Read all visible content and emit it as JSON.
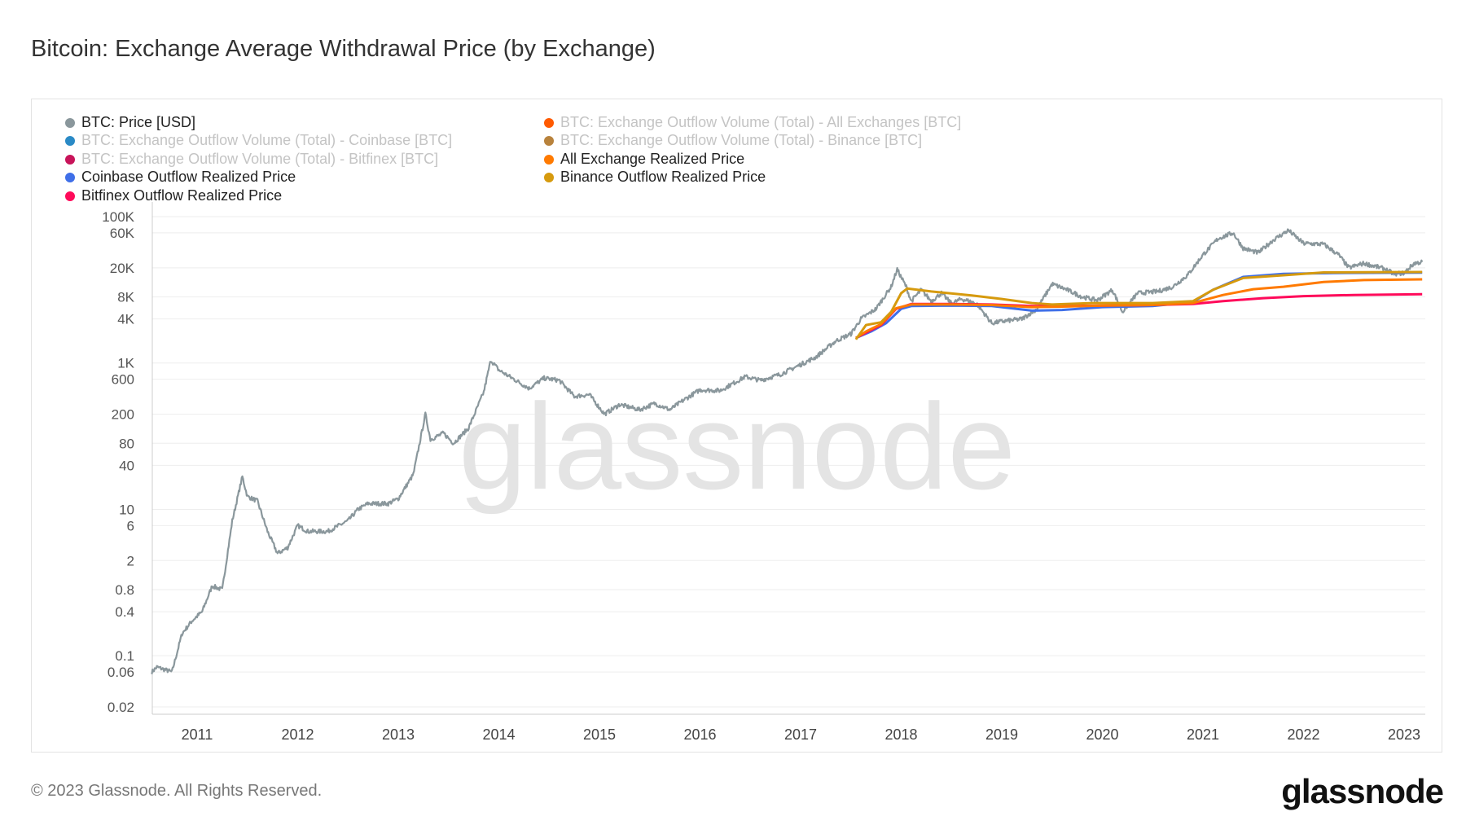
{
  "title": "Bitcoin: Exchange Average Withdrawal Price (by Exchange)",
  "footer": "© 2023 Glassnode. All Rights Reserved.",
  "logo": "glassnode",
  "watermark": "glassnode",
  "legend": [
    {
      "label": "BTC: Price [USD]",
      "color": "#8a979c",
      "active": true
    },
    {
      "label": "BTC: Exchange Outflow Volume (Total) - Coinbase [BTC]",
      "color": "#2a8ac6",
      "active": false
    },
    {
      "label": "BTC: Exchange Outflow Volume (Total) - Bitfinex [BTC]",
      "color": "#c8145a",
      "active": false
    },
    {
      "label": "Coinbase Outflow Realized Price",
      "color": "#3f6fe8",
      "active": true
    },
    {
      "label": "Bitfinex Outflow Realized Price",
      "color": "#ff0a5a",
      "active": true
    },
    {
      "label": "BTC: Exchange Outflow Volume (Total) - All Exchanges [BTC]",
      "color": "#ff5a00",
      "active": false
    },
    {
      "label": "BTC: Exchange Outflow Volume (Total) - Binance [BTC]",
      "color": "#b8823c",
      "active": false
    },
    {
      "label": "All Exchange Realized Price",
      "color": "#ff7a00",
      "active": true
    },
    {
      "label": "Binance Outflow Realized Price",
      "color": "#d69a0e",
      "active": true
    }
  ],
  "chart_data": {
    "type": "line",
    "title": "Bitcoin: Exchange Average Withdrawal Price (by Exchange)",
    "y_scale": "log",
    "ylim": [
      0.015,
      200000
    ],
    "xlim": [
      2010.55,
      2023.2
    ],
    "grid": true,
    "legend_placement": "top-left",
    "y_ticks": [
      {
        "v": 100000,
        "label": "100K"
      },
      {
        "v": 60000,
        "label": "60K"
      },
      {
        "v": 20000,
        "label": "20K"
      },
      {
        "v": 8000,
        "label": "8K"
      },
      {
        "v": 4000,
        "label": "4K"
      },
      {
        "v": 1000,
        "label": "1K"
      },
      {
        "v": 600,
        "label": "600"
      },
      {
        "v": 200,
        "label": "200"
      },
      {
        "v": 80,
        "label": "80"
      },
      {
        "v": 40,
        "label": "40"
      },
      {
        "v": 10,
        "label": "10"
      },
      {
        "v": 6,
        "label": "6"
      },
      {
        "v": 2,
        "label": "2"
      },
      {
        "v": 0.8,
        "label": "0.8"
      },
      {
        "v": 0.4,
        "label": "0.4"
      },
      {
        "v": 0.1,
        "label": "0.1"
      },
      {
        "v": 0.06,
        "label": "0.06"
      },
      {
        "v": 0.02,
        "label": "0.02"
      }
    ],
    "x_ticks": [
      "2011",
      "2012",
      "2013",
      "2014",
      "2015",
      "2016",
      "2017",
      "2018",
      "2019",
      "2020",
      "2021",
      "2022",
      "2023"
    ],
    "series": [
      {
        "name": "BTC: Price [USD]",
        "color": "#8a979c",
        "points": [
          [
            2010.55,
            0.06
          ],
          [
            2010.6,
            0.07
          ],
          [
            2010.75,
            0.06
          ],
          [
            2010.85,
            0.2
          ],
          [
            2010.95,
            0.3
          ],
          [
            2011.05,
            0.4
          ],
          [
            2011.15,
            0.9
          ],
          [
            2011.25,
            0.8
          ],
          [
            2011.35,
            7
          ],
          [
            2011.45,
            28
          ],
          [
            2011.5,
            15
          ],
          [
            2011.6,
            13
          ],
          [
            2011.7,
            5
          ],
          [
            2011.8,
            2.5
          ],
          [
            2011.9,
            3
          ],
          [
            2012.0,
            6
          ],
          [
            2012.1,
            5
          ],
          [
            2012.3,
            5
          ],
          [
            2012.5,
            7
          ],
          [
            2012.6,
            10
          ],
          [
            2012.7,
            12
          ],
          [
            2012.9,
            12
          ],
          [
            2013.0,
            14
          ],
          [
            2013.15,
            30
          ],
          [
            2013.27,
            200
          ],
          [
            2013.32,
            90
          ],
          [
            2013.45,
            110
          ],
          [
            2013.55,
            80
          ],
          [
            2013.7,
            130
          ],
          [
            2013.85,
            400
          ],
          [
            2013.92,
            1100
          ],
          [
            2014.0,
            800
          ],
          [
            2014.15,
            600
          ],
          [
            2014.3,
            450
          ],
          [
            2014.45,
            620
          ],
          [
            2014.6,
            580
          ],
          [
            2014.75,
            350
          ],
          [
            2014.9,
            370
          ],
          [
            2015.05,
            200
          ],
          [
            2015.2,
            270
          ],
          [
            2015.4,
            230
          ],
          [
            2015.55,
            280
          ],
          [
            2015.7,
            230
          ],
          [
            2015.85,
            320
          ],
          [
            2016.0,
            430
          ],
          [
            2016.2,
            420
          ],
          [
            2016.45,
            650
          ],
          [
            2016.6,
            580
          ],
          [
            2016.8,
            700
          ],
          [
            2017.0,
            950
          ],
          [
            2017.15,
            1200
          ],
          [
            2017.35,
            2000
          ],
          [
            2017.5,
            2500
          ],
          [
            2017.6,
            4000
          ],
          [
            2017.75,
            5500
          ],
          [
            2017.9,
            11000
          ],
          [
            2017.96,
            19000
          ],
          [
            2018.05,
            11000
          ],
          [
            2018.1,
            7000
          ],
          [
            2018.2,
            10000
          ],
          [
            2018.3,
            7000
          ],
          [
            2018.4,
            9000
          ],
          [
            2018.5,
            6500
          ],
          [
            2018.6,
            7500
          ],
          [
            2018.75,
            6500
          ],
          [
            2018.9,
            3500
          ],
          [
            2019.0,
            3700
          ],
          [
            2019.2,
            4000
          ],
          [
            2019.35,
            5500
          ],
          [
            2019.5,
            12000
          ],
          [
            2019.65,
            10000
          ],
          [
            2019.8,
            8000
          ],
          [
            2019.95,
            7200
          ],
          [
            2020.1,
            10000
          ],
          [
            2020.2,
            5000
          ],
          [
            2020.35,
            9000
          ],
          [
            2020.55,
            9500
          ],
          [
            2020.7,
            11000
          ],
          [
            2020.85,
            16000
          ],
          [
            2021.0,
            30000
          ],
          [
            2021.15,
            50000
          ],
          [
            2021.3,
            60000
          ],
          [
            2021.4,
            37000
          ],
          [
            2021.55,
            32000
          ],
          [
            2021.7,
            48000
          ],
          [
            2021.85,
            65000
          ],
          [
            2022.0,
            43000
          ],
          [
            2022.2,
            42000
          ],
          [
            2022.35,
            30000
          ],
          [
            2022.45,
            20000
          ],
          [
            2022.6,
            23000
          ],
          [
            2022.8,
            19500
          ],
          [
            2022.9,
            16500
          ],
          [
            2023.0,
            17000
          ],
          [
            2023.1,
            23000
          ],
          [
            2023.18,
            24000
          ]
        ]
      },
      {
        "name": "Coinbase Outflow Realized Price",
        "color": "#3f6fe8",
        "points": [
          [
            2017.55,
            2200
          ],
          [
            2017.7,
            2700
          ],
          [
            2017.85,
            3500
          ],
          [
            2018.0,
            5500
          ],
          [
            2018.1,
            6000
          ],
          [
            2018.5,
            6100
          ],
          [
            2018.9,
            6000
          ],
          [
            2019.3,
            5200
          ],
          [
            2019.6,
            5300
          ],
          [
            2020.0,
            5800
          ],
          [
            2020.5,
            6000
          ],
          [
            2020.9,
            6800
          ],
          [
            2021.1,
            10000
          ],
          [
            2021.4,
            15000
          ],
          [
            2021.8,
            16500
          ],
          [
            2022.3,
            17000
          ],
          [
            2023.18,
            17200
          ]
        ]
      },
      {
        "name": "Bitfinex Outflow Realized Price",
        "color": "#ff0a5a",
        "points": [
          [
            2017.55,
            2200
          ],
          [
            2017.65,
            2600
          ],
          [
            2017.8,
            3300
          ],
          [
            2017.95,
            5500
          ],
          [
            2018.1,
            6400
          ],
          [
            2018.5,
            6400
          ],
          [
            2018.9,
            6300
          ],
          [
            2019.3,
            6000
          ],
          [
            2019.6,
            6000
          ],
          [
            2020.0,
            6100
          ],
          [
            2020.5,
            6200
          ],
          [
            2020.9,
            6400
          ],
          [
            2021.2,
            7000
          ],
          [
            2021.6,
            7700
          ],
          [
            2022.0,
            8200
          ],
          [
            2022.5,
            8500
          ],
          [
            2023.18,
            8700
          ]
        ]
      },
      {
        "name": "All Exchange Realized Price",
        "color": "#ff7a00",
        "points": [
          [
            2017.55,
            2200
          ],
          [
            2017.65,
            2700
          ],
          [
            2017.8,
            3400
          ],
          [
            2017.95,
            5600
          ],
          [
            2018.1,
            6300
          ],
          [
            2018.5,
            6300
          ],
          [
            2018.9,
            6200
          ],
          [
            2019.3,
            5800
          ],
          [
            2019.6,
            5900
          ],
          [
            2020.0,
            6100
          ],
          [
            2020.5,
            6200
          ],
          [
            2020.9,
            6600
          ],
          [
            2021.2,
            8500
          ],
          [
            2021.5,
            10200
          ],
          [
            2021.8,
            11000
          ],
          [
            2022.2,
            12800
          ],
          [
            2022.6,
            13600
          ],
          [
            2023.18,
            13900
          ]
        ]
      },
      {
        "name": "Binance Outflow Realized Price",
        "color": "#d69a0e",
        "points": [
          [
            2017.55,
            2100
          ],
          [
            2017.65,
            3300
          ],
          [
            2017.8,
            3600
          ],
          [
            2017.9,
            5000
          ],
          [
            2018.0,
            9000
          ],
          [
            2018.06,
            10400
          ],
          [
            2018.3,
            9500
          ],
          [
            2018.7,
            8400
          ],
          [
            2019.0,
            7500
          ],
          [
            2019.3,
            6600
          ],
          [
            2019.5,
            6300
          ],
          [
            2019.9,
            6600
          ],
          [
            2020.5,
            6600
          ],
          [
            2020.9,
            7000
          ],
          [
            2021.1,
            10000
          ],
          [
            2021.4,
            14500
          ],
          [
            2021.8,
            15800
          ],
          [
            2022.2,
            17300
          ],
          [
            2023.18,
            17500
          ]
        ]
      }
    ]
  }
}
